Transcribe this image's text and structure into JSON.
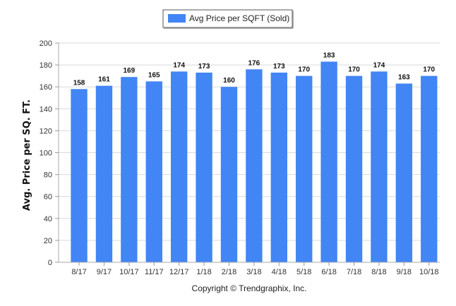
{
  "chart_data": {
    "type": "bar",
    "categories": [
      "8/17",
      "9/17",
      "10/17",
      "11/17",
      "12/17",
      "1/18",
      "2/18",
      "3/18",
      "4/18",
      "5/18",
      "6/18",
      "7/18",
      "8/18",
      "9/18",
      "10/18"
    ],
    "series": [
      {
        "name": "Avg Price per SQFT (Sold)",
        "values": [
          158,
          161,
          169,
          165,
          174,
          173,
          160,
          176,
          173,
          170,
          183,
          170,
          174,
          163,
          170
        ],
        "color": "#4285f4"
      }
    ],
    "xlabel": "",
    "ylabel": "Avg. Price per SQ. FT.",
    "ylim": [
      0,
      200
    ],
    "yticks": [
      0,
      20,
      40,
      60,
      80,
      100,
      120,
      140,
      160,
      180,
      200
    ],
    "grid": true,
    "legend_position": "top-center",
    "data_labels": true
  },
  "footer": {
    "copyright": "Copyright © Trendgraphix, Inc."
  }
}
